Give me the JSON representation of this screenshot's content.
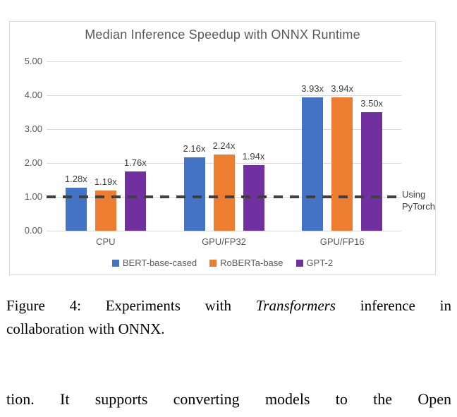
{
  "chart_data": {
    "type": "bar",
    "title": "Median Inference Speedup with ONNX Runtime",
    "categories": [
      "CPU",
      "GPU/FP32",
      "GPU/FP16"
    ],
    "series": [
      {
        "name": "BERT-base-cased",
        "color": "#4472C4",
        "values": [
          1.28,
          2.16,
          3.93
        ],
        "labels": [
          "1.28x",
          "2.16x",
          "3.93x"
        ]
      },
      {
        "name": "RoBERTa-base",
        "color": "#ED7D31",
        "values": [
          1.19,
          2.24,
          3.94
        ],
        "labels": [
          "1.19x",
          "2.24x",
          "3.94x"
        ]
      },
      {
        "name": "GPT-2",
        "color": "#7030A0",
        "values": [
          1.76,
          1.94,
          3.5
        ],
        "labels": [
          "1.76x",
          "1.94x",
          "3.50x"
        ]
      }
    ],
    "ylim": [
      0,
      5
    ],
    "ytick_values": [
      0,
      1,
      2,
      3,
      4,
      5
    ],
    "yticks": [
      "0.00",
      "1.00",
      "2.00",
      "3.00",
      "4.00",
      "5.00"
    ],
    "grid": true,
    "legend_position": "bottom",
    "reference_line": {
      "value": 1.0,
      "label_line1": "Using",
      "label_line2": "PyTorch"
    },
    "colors": {
      "grid": "#d9d9d9",
      "frame_border": "#d9d9d9",
      "axis_text": "#595959",
      "title_text": "#595959",
      "data_label_text": "#404040",
      "reference_line": "#404040"
    }
  },
  "caption": {
    "line1_prefix": "Figure 4: Experiments with ",
    "line1_italic": "Transformers",
    "line1_suffix": " inference in",
    "line2": "collaboration with ONNX."
  },
  "body_text": "tion. It supports converting models to the Open"
}
